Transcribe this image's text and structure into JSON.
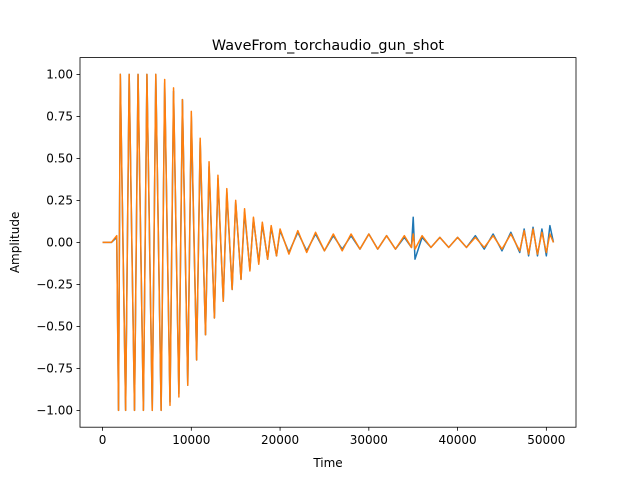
{
  "chart_data": {
    "type": "line",
    "title": "WaveFrom_torchaudio_gun_shot",
    "xlabel": "Time",
    "ylabel": "Amplitude",
    "xlim": [
      -2540,
      53340
    ],
    "ylim": [
      -1.1,
      1.1
    ],
    "x_ticks": [
      0,
      10000,
      20000,
      30000,
      40000,
      50000
    ],
    "x_tick_labels": [
      "0",
      "10000",
      "20000",
      "30000",
      "40000",
      "50000"
    ],
    "y_ticks": [
      -1.0,
      -0.75,
      -0.5,
      -0.25,
      0.0,
      0.25,
      0.5,
      0.75,
      1.0
    ],
    "y_tick_labels": [
      "−1.00",
      "−0.75",
      "−0.50",
      "−0.25",
      "0.00",
      "0.25",
      "0.50",
      "0.75",
      "1.00"
    ],
    "grid": false,
    "legend": "none",
    "colors": [
      "#1f77b4",
      "#ff7f0e"
    ],
    "series": [
      {
        "color": "#1f77b4",
        "x": [
          0,
          1000,
          1600,
          1800,
          2000,
          2600,
          3000,
          3600,
          4000,
          4600,
          5000,
          5600,
          6000,
          6600,
          7000,
          7600,
          8000,
          8600,
          9000,
          9600,
          10000,
          10600,
          11000,
          11600,
          12000,
          12600,
          13000,
          13600,
          14000,
          14600,
          15000,
          15600,
          16000,
          16600,
          17000,
          17600,
          18000,
          18600,
          19000,
          19600,
          20000,
          21000,
          22000,
          23000,
          24000,
          25000,
          26000,
          27000,
          28000,
          29000,
          30000,
          31000,
          32000,
          33000,
          34000,
          34800,
          35000,
          35200,
          36000,
          37000,
          38000,
          39000,
          40000,
          41000,
          42000,
          43000,
          44000,
          45000,
          46000,
          47000,
          47500,
          48000,
          48500,
          49000,
          49500,
          50000,
          50400,
          50800
        ],
        "y": [
          0.0,
          0.0,
          0.03,
          -1.0,
          1.0,
          -1.0,
          1.0,
          -1.0,
          1.0,
          -1.0,
          1.0,
          -1.0,
          1.0,
          -1.0,
          0.95,
          -0.95,
          0.9,
          -0.9,
          0.85,
          -0.85,
          0.75,
          -0.7,
          0.6,
          -0.55,
          0.45,
          -0.45,
          0.38,
          -0.35,
          0.3,
          -0.28,
          0.24,
          -0.22,
          0.18,
          -0.16,
          0.14,
          -0.12,
          0.11,
          -0.1,
          0.09,
          -0.08,
          0.07,
          -0.06,
          0.06,
          -0.05,
          0.05,
          -0.05,
          0.04,
          -0.04,
          0.04,
          -0.04,
          0.05,
          -0.04,
          0.04,
          -0.04,
          0.03,
          -0.03,
          0.15,
          -0.1,
          0.03,
          -0.03,
          0.03,
          -0.03,
          0.03,
          -0.03,
          0.04,
          -0.04,
          0.05,
          -0.05,
          0.06,
          -0.06,
          0.08,
          -0.08,
          0.09,
          -0.08,
          0.08,
          -0.08,
          0.1,
          0.0
        ]
      },
      {
        "color": "#ff7f0e",
        "x": [
          0,
          1000,
          1600,
          1800,
          2000,
          2600,
          3000,
          3600,
          4000,
          4600,
          5000,
          5600,
          6000,
          6600,
          7000,
          7600,
          8000,
          8600,
          9000,
          9600,
          10000,
          10600,
          11000,
          11600,
          12000,
          12600,
          13000,
          13600,
          14000,
          14600,
          15000,
          15600,
          16000,
          16600,
          17000,
          17600,
          18000,
          18600,
          19000,
          19600,
          20000,
          21000,
          22000,
          23000,
          24000,
          25000,
          26000,
          27000,
          28000,
          29000,
          30000,
          31000,
          32000,
          33000,
          34000,
          34800,
          35000,
          35200,
          36000,
          37000,
          38000,
          39000,
          40000,
          41000,
          42000,
          43000,
          44000,
          45000,
          46000,
          47000,
          47500,
          48000,
          48500,
          49000,
          49500,
          50000,
          50400,
          50800
        ],
        "y": [
          0.0,
          0.0,
          0.04,
          -1.0,
          1.0,
          -1.0,
          1.0,
          -1.0,
          1.0,
          -1.0,
          1.0,
          -1.0,
          1.0,
          -1.0,
          0.97,
          -0.97,
          0.92,
          -0.92,
          0.85,
          -0.85,
          0.78,
          -0.7,
          0.62,
          -0.55,
          0.48,
          -0.45,
          0.4,
          -0.35,
          0.32,
          -0.28,
          0.25,
          -0.22,
          0.2,
          -0.17,
          0.15,
          -0.13,
          0.12,
          -0.1,
          0.1,
          -0.08,
          0.08,
          -0.07,
          0.07,
          -0.06,
          0.06,
          -0.05,
          0.05,
          -0.05,
          0.05,
          -0.04,
          0.05,
          -0.04,
          0.04,
          -0.04,
          0.04,
          -0.03,
          0.05,
          -0.04,
          0.04,
          -0.03,
          0.03,
          -0.03,
          0.03,
          -0.03,
          0.03,
          -0.03,
          0.04,
          -0.04,
          0.05,
          -0.05,
          0.07,
          -0.07,
          0.08,
          -0.07,
          0.06,
          -0.06,
          0.05,
          0.0
        ]
      }
    ]
  }
}
